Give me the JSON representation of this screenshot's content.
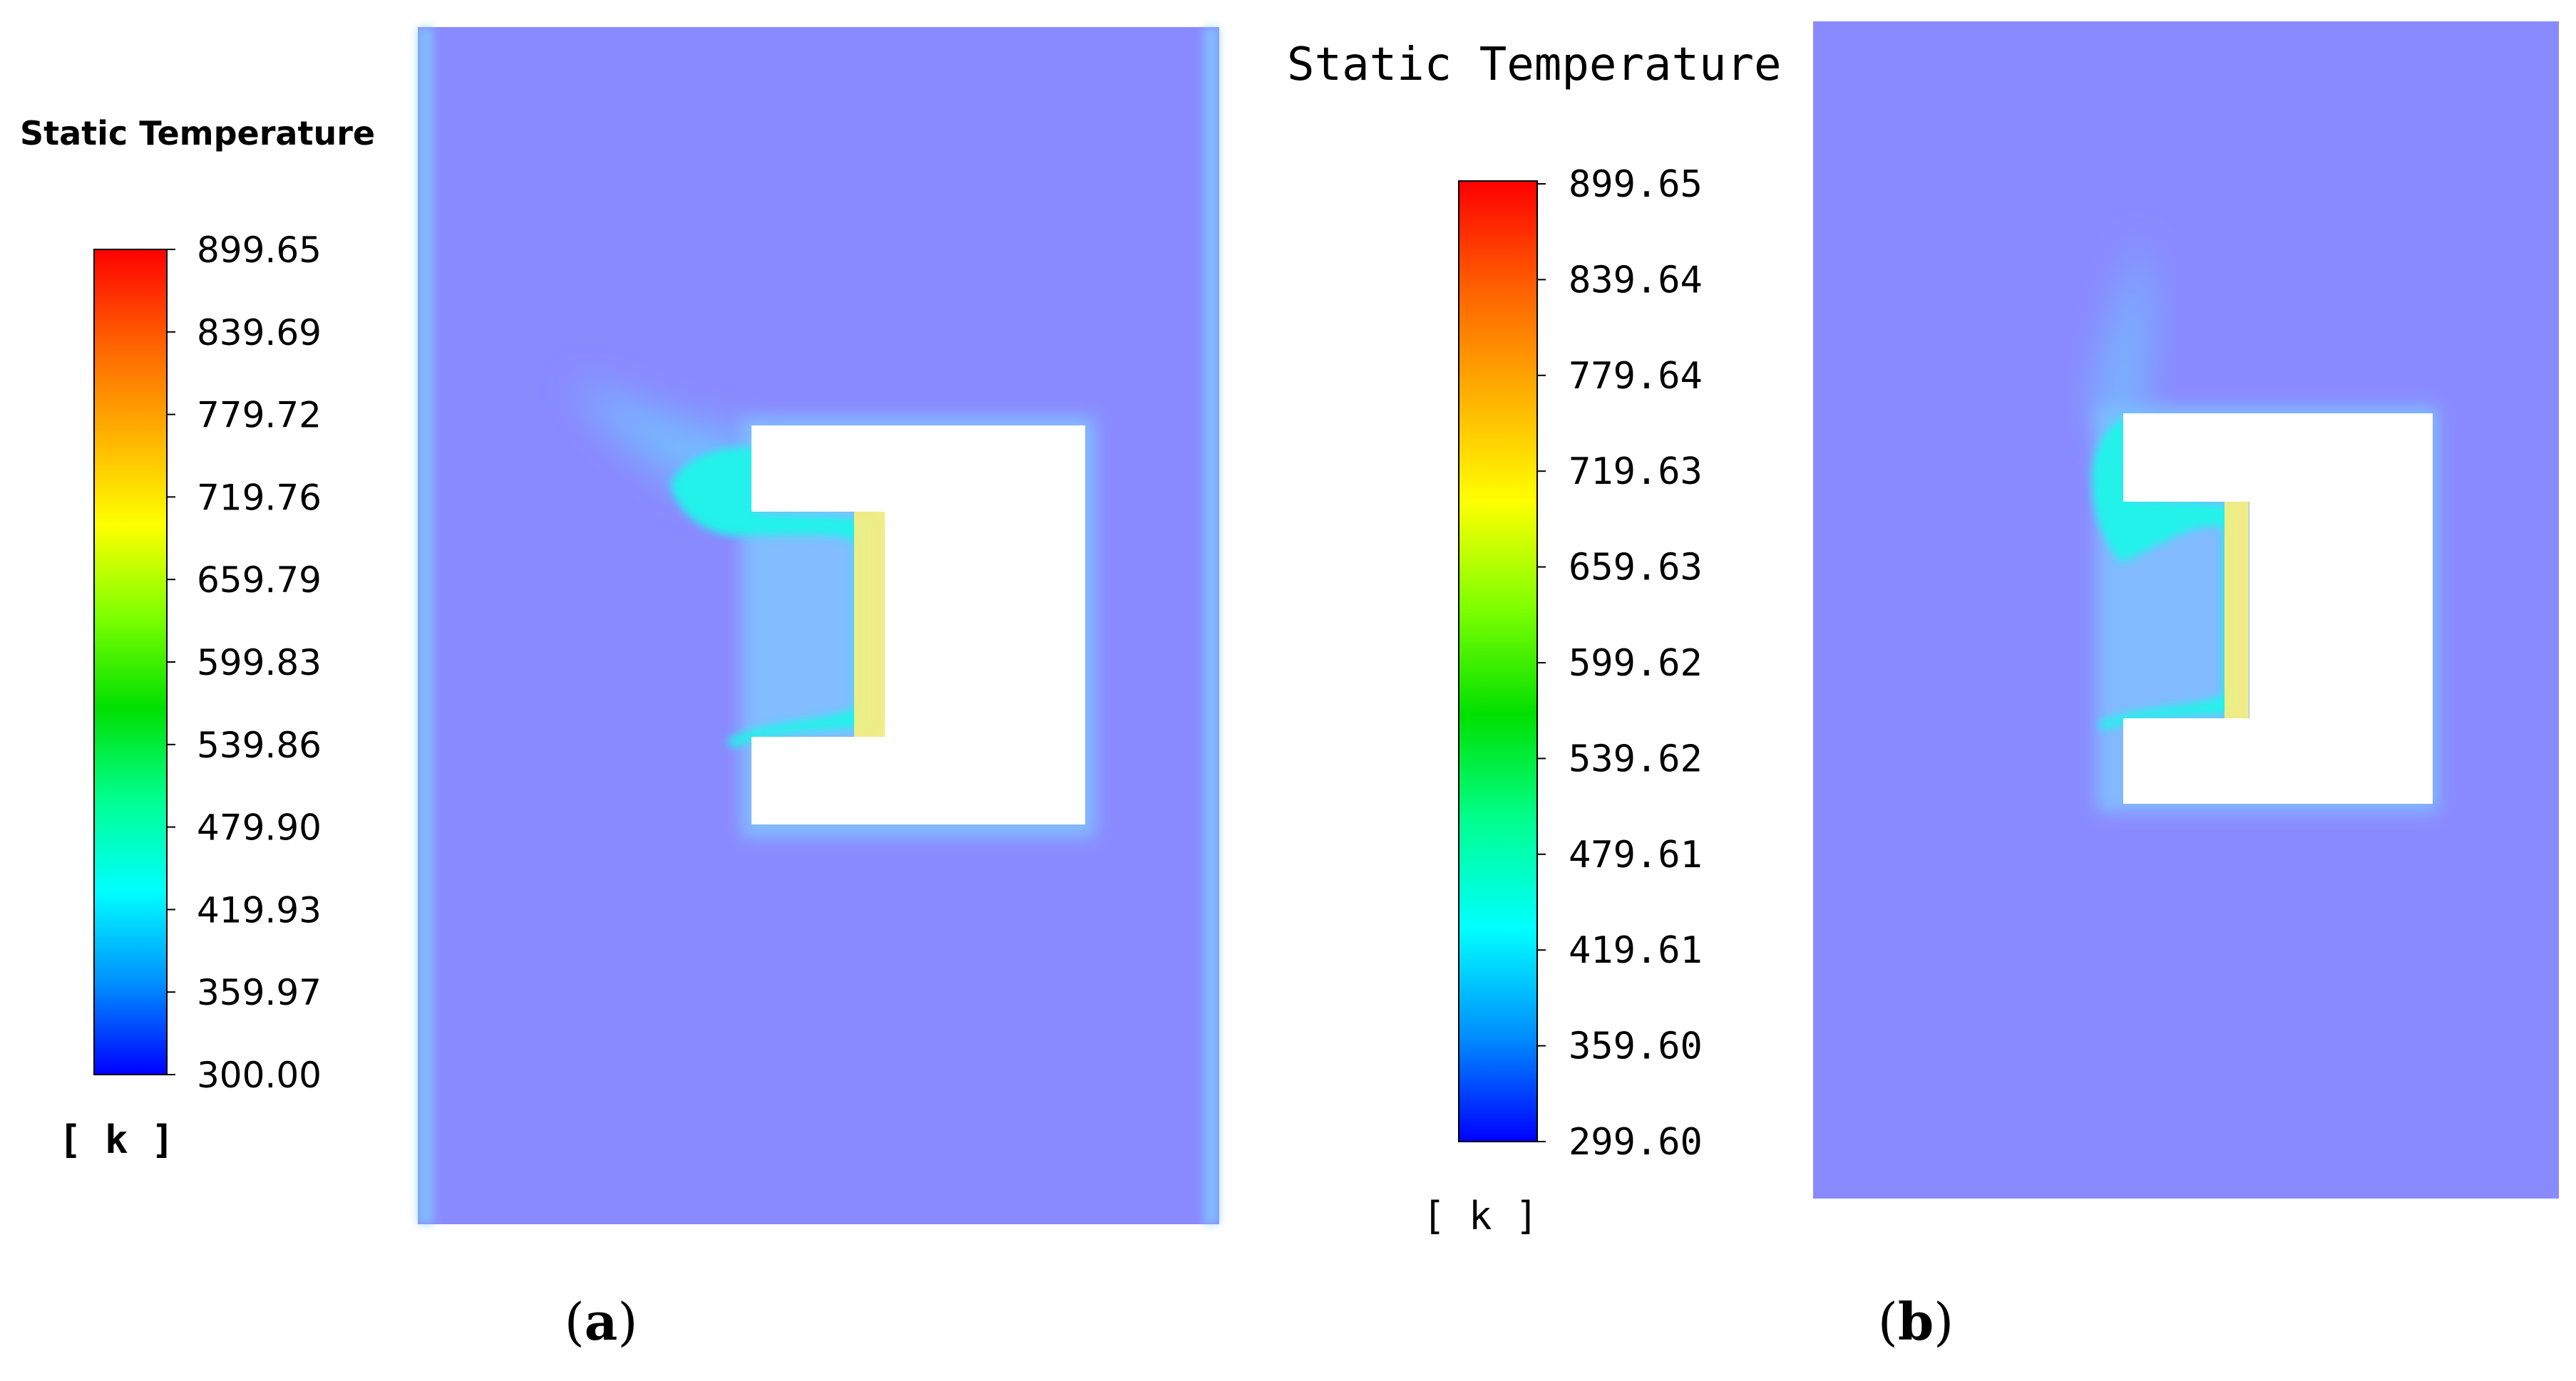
{
  "colors": {
    "domain_fill": "#8A8AFF",
    "wall_glow": "#7FCFFF",
    "plume": "#20F2EA",
    "hot_edge": "#F5EE82",
    "block": "#FFFFFF",
    "colorbar_stops": [
      "#0000FF",
      "#0090FF",
      "#00FFFF",
      "#00FF90",
      "#00E000",
      "#7FFF00",
      "#FFFF00",
      "#FFB000",
      "#FF6000",
      "#FF0000"
    ]
  },
  "panels": [
    {
      "label": "a",
      "legend": {
        "title": "Static Temperature",
        "ticks": [
          "899.65",
          "839.69",
          "779.72",
          "719.76",
          "659.79",
          "599.83",
          "539.86",
          "479.90",
          "419.93",
          "359.97",
          "300.00"
        ],
        "unit": "[ k ]"
      }
    },
    {
      "label": "b",
      "legend": {
        "title": "Static Temperature",
        "ticks": [
          "899.65",
          "839.64",
          "779.64",
          "719.63",
          "659.63",
          "599.62",
          "539.62",
          "479.61",
          "419.61",
          "359.60",
          "299.60"
        ],
        "unit": "[ k ]"
      }
    }
  ]
}
